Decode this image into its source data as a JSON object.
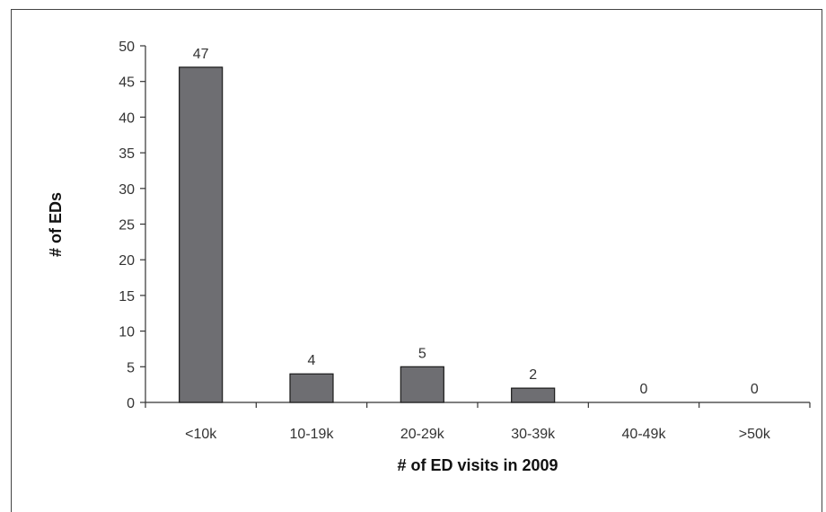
{
  "chart_data": {
    "type": "bar",
    "categories": [
      "<10k",
      "10-19k",
      "20-29k",
      "30-39k",
      "40-49k",
      ">50k"
    ],
    "values": [
      47,
      4,
      5,
      2,
      0,
      0
    ],
    "data_labels": [
      "47",
      "4",
      "5",
      "2",
      "0",
      "0"
    ],
    "title": "",
    "xlabel": "# of ED visits in 2009",
    "ylabel": "# of EDs",
    "ylim": [
      0,
      50
    ],
    "yticks": [
      0,
      5,
      10,
      15,
      20,
      25,
      30,
      35,
      40,
      45,
      50
    ],
    "grid": false,
    "legend": "none",
    "bar_color": "#6e6e72",
    "bar_edge_color": "#1a1a1a"
  }
}
